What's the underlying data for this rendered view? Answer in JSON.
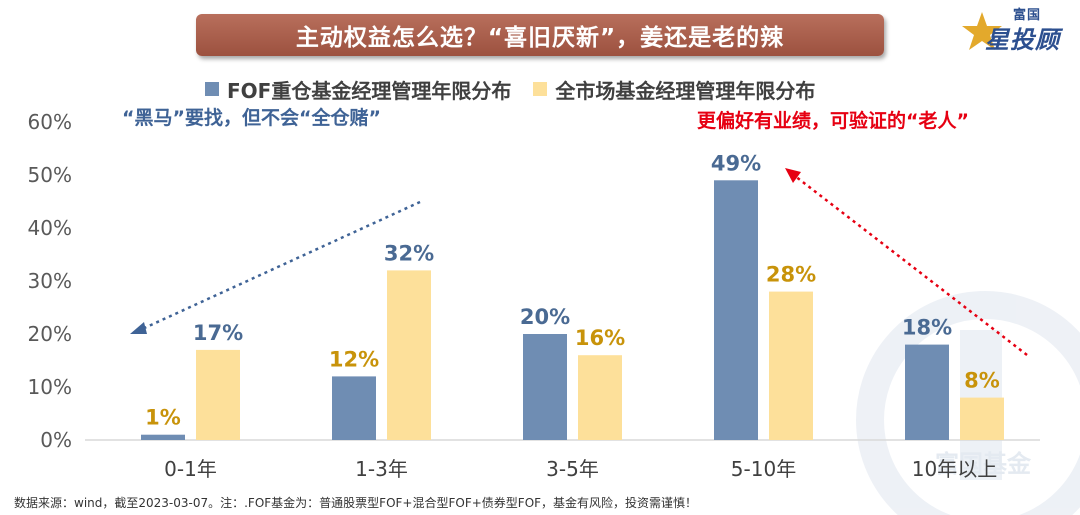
{
  "title": "主动权益怎么选？“喜旧厌新”，姜还是老的辣",
  "logo": {
    "top_text": "富国",
    "main_text": "星投顾"
  },
  "watermark_text": "富国基金",
  "notes": {
    "left": "“黑马”要找，但不会“全仓赌”",
    "right": "更偏好有业绩，可验证的“老人”"
  },
  "footer": "数据来源：wind，截至2023-03-07。注：.FOF基金为：普通股票型FOF+混合型FOF+债券型FOF，基金有风险，投资需谨慎！",
  "colors": {
    "series1": "#6f8db3",
    "series2": "#fde09a",
    "label1": "#4a6a93",
    "label2": "#c8930a",
    "left_arrow": "#3f6396",
    "right_arrow": "#e60012"
  },
  "chart_data": {
    "type": "bar",
    "title": "主动权益怎么选？“喜旧厌新”，姜还是老的辣",
    "xlabel": "",
    "ylabel": "",
    "ylim": [
      0,
      60
    ],
    "yticks": [
      "0%",
      "10%",
      "20%",
      "30%",
      "40%",
      "50%",
      "60%"
    ],
    "categories": [
      "0-1年",
      "1-3年",
      "3-5年",
      "5-10年",
      "10年以上"
    ],
    "legend_position": "top",
    "series": [
      {
        "name": "FOF重仓基金经理管理年限分布",
        "values": [
          1,
          12,
          20,
          49,
          18
        ],
        "labels": [
          "1%",
          "12%",
          "20%",
          "49%",
          "18%"
        ]
      },
      {
        "name": "全市场基金经理管理年限分布",
        "values": [
          17,
          32,
          16,
          28,
          8
        ],
        "labels": [
          "17%",
          "32%",
          "16%",
          "28%",
          "8%"
        ]
      }
    ]
  }
}
